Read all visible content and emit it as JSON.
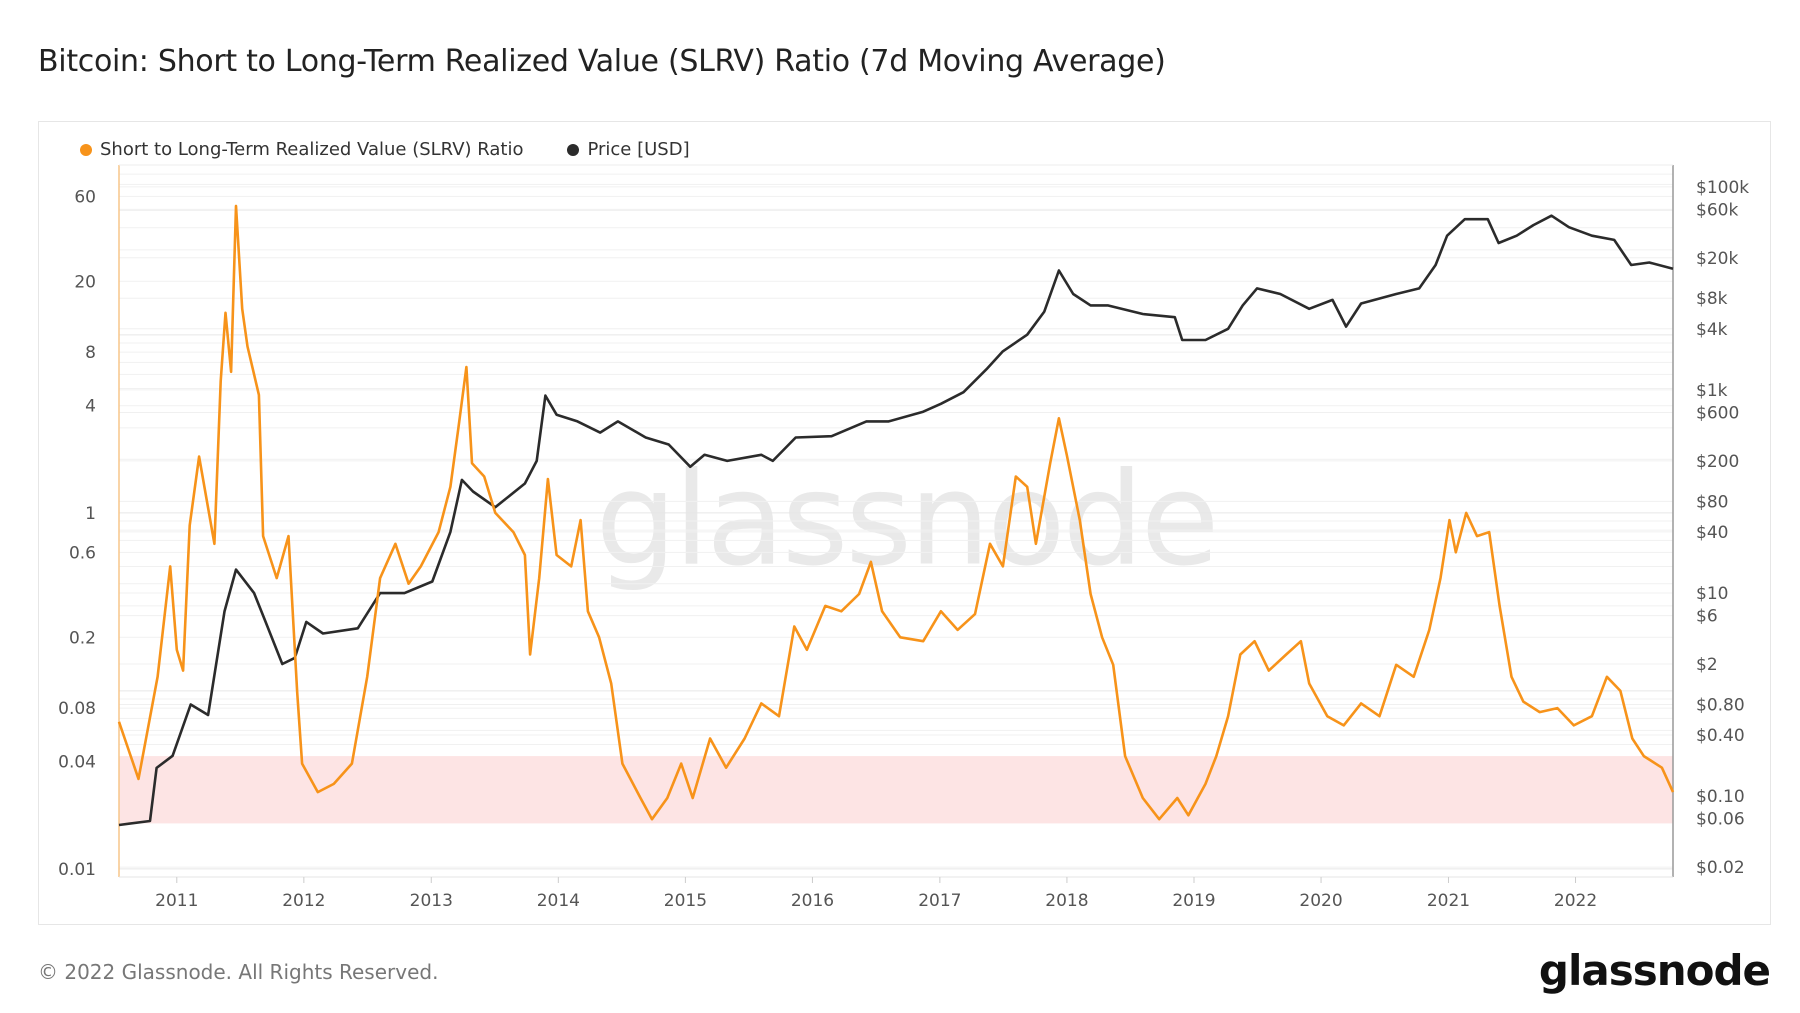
{
  "title": "Bitcoin: Short to Long-Term Realized Value (SLRV) Ratio (7d Moving Average)",
  "footer": "© 2022 Glassnode. All Rights Reserved.",
  "logo": "glassnode",
  "watermark": "glassnode",
  "chart_data": {
    "type": "line",
    "title": "Bitcoin: Short to Long-Term Realized Value (SLRV) Ratio (7d Moving Average)",
    "legend_placement": "top-left",
    "grid": true,
    "xlim": [
      "2010-07-19",
      "2022-10-08"
    ],
    "x_ticks": [
      "2011",
      "2012",
      "2013",
      "2014",
      "2015",
      "2016",
      "2017",
      "2018",
      "2019",
      "2020",
      "2021",
      "2022"
    ],
    "y_left": {
      "scale": "log",
      "ylim": [
        0.009,
        90
      ],
      "ticks": [
        60,
        20,
        8,
        4,
        1,
        0.6,
        0.2,
        0.08,
        0.04,
        0.01
      ],
      "tick_labels": [
        "60",
        "20",
        "8",
        "4",
        "1",
        "0.6",
        "0.2",
        "0.08",
        "0.04",
        "0.01"
      ]
    },
    "y_right": {
      "scale": "log",
      "ylim": [
        0.016,
        164000
      ],
      "ticks": [
        100000,
        60000,
        20000,
        8000,
        4000,
        1000,
        600,
        200,
        80,
        40,
        10,
        6,
        2,
        0.8,
        0.4,
        0.1,
        0.06,
        0.02
      ],
      "tick_labels": [
        "$100k",
        "$60k",
        "$20k",
        "$8k",
        "$4k",
        "$1k",
        "$600",
        "$200",
        "$80",
        "$40",
        "$10",
        "$6",
        "$2",
        "$0.80",
        "$0.40",
        "$0.10",
        "$0.06",
        "$0.02"
      ]
    },
    "band": {
      "axis": "left",
      "range": [
        0.018,
        0.043
      ],
      "color": "#fde4e4"
    },
    "series": [
      {
        "name": "Short to Long-Term Realized Value (SLRV) Ratio",
        "axis": "left",
        "color": "#f7931a",
        "points": [
          [
            "2010-07-19",
            0.067
          ],
          [
            "2010-09-13",
            0.032
          ],
          [
            "2010-11-07",
            0.12
          ],
          [
            "2010-12-13",
            0.5
          ],
          [
            "2011-01-01",
            0.17
          ],
          [
            "2011-01-19",
            0.13
          ],
          [
            "2011-02-07",
            0.85
          ],
          [
            "2011-03-06",
            2.07
          ],
          [
            "2011-04-19",
            0.67
          ],
          [
            "2011-05-07",
            5.5
          ],
          [
            "2011-05-21",
            13.3
          ],
          [
            "2011-06-06",
            6.2
          ],
          [
            "2011-06-20",
            53
          ],
          [
            "2011-07-08",
            14
          ],
          [
            "2011-07-23",
            8.6
          ],
          [
            "2011-08-25",
            4.6
          ],
          [
            "2011-09-06",
            0.74
          ],
          [
            "2011-10-15",
            0.43
          ],
          [
            "2011-11-18",
            0.74
          ],
          [
            "2011-12-13",
            0.098
          ],
          [
            "2011-12-27",
            0.039
          ],
          [
            "2012-02-10",
            0.027
          ],
          [
            "2012-03-27",
            0.03
          ],
          [
            "2012-05-18",
            0.039
          ],
          [
            "2012-07-01",
            0.12
          ],
          [
            "2012-08-07",
            0.43
          ],
          [
            "2012-09-20",
            0.67
          ],
          [
            "2012-10-28",
            0.4
          ],
          [
            "2012-12-02",
            0.5
          ],
          [
            "2013-01-22",
            0.78
          ],
          [
            "2013-02-25",
            1.4
          ],
          [
            "2013-03-20",
            3.0
          ],
          [
            "2013-04-12",
            6.6
          ],
          [
            "2013-04-28",
            1.9
          ],
          [
            "2013-06-02",
            1.6
          ],
          [
            "2013-07-04",
            1.0
          ],
          [
            "2013-08-25",
            0.78
          ],
          [
            "2013-09-27",
            0.58
          ],
          [
            "2013-10-12",
            0.16
          ],
          [
            "2013-11-07",
            0.43
          ],
          [
            "2013-12-02",
            1.55
          ],
          [
            "2013-12-27",
            0.58
          ],
          [
            "2014-02-07",
            0.5
          ],
          [
            "2014-03-06",
            0.91
          ],
          [
            "2014-03-27",
            0.28
          ],
          [
            "2014-04-28",
            0.2
          ],
          [
            "2014-06-02",
            0.11
          ],
          [
            "2014-07-04",
            0.039
          ],
          [
            "2014-08-25",
            0.025
          ],
          [
            "2014-09-27",
            0.019
          ],
          [
            "2014-11-10",
            0.025
          ],
          [
            "2014-12-20",
            0.039
          ],
          [
            "2015-01-22",
            0.025
          ],
          [
            "2015-03-13",
            0.054
          ],
          [
            "2015-04-28",
            0.037
          ],
          [
            "2015-06-20",
            0.054
          ],
          [
            "2015-08-07",
            0.085
          ],
          [
            "2015-09-27",
            0.072
          ],
          [
            "2015-11-10",
            0.23
          ],
          [
            "2015-12-16",
            0.17
          ],
          [
            "2016-02-07",
            0.3
          ],
          [
            "2016-03-24",
            0.28
          ],
          [
            "2016-05-14",
            0.35
          ],
          [
            "2016-06-17",
            0.53
          ],
          [
            "2016-07-19",
            0.28
          ],
          [
            "2016-09-09",
            0.2
          ],
          [
            "2016-11-14",
            0.19
          ],
          [
            "2017-01-04",
            0.28
          ],
          [
            "2017-02-21",
            0.22
          ],
          [
            "2017-04-12",
            0.27
          ],
          [
            "2017-05-25",
            0.67
          ],
          [
            "2017-07-01",
            0.5
          ],
          [
            "2017-08-07",
            1.6
          ],
          [
            "2017-09-09",
            1.4
          ],
          [
            "2017-10-04",
            0.67
          ],
          [
            "2017-11-14",
            1.9
          ],
          [
            "2017-12-09",
            3.4
          ],
          [
            "2018-01-01",
            2.1
          ],
          [
            "2018-02-07",
            0.91
          ],
          [
            "2018-03-10",
            0.35
          ],
          [
            "2018-04-12",
            0.2
          ],
          [
            "2018-05-14",
            0.14
          ],
          [
            "2018-06-17",
            0.043
          ],
          [
            "2018-08-07",
            0.025
          ],
          [
            "2018-09-23",
            0.019
          ],
          [
            "2018-11-14",
            0.025
          ],
          [
            "2018-12-16",
            0.02
          ],
          [
            "2019-02-03",
            0.03
          ],
          [
            "2019-03-06",
            0.043
          ],
          [
            "2019-04-09",
            0.072
          ],
          [
            "2019-05-14",
            0.16
          ],
          [
            "2019-06-24",
            0.19
          ],
          [
            "2019-08-04",
            0.13
          ],
          [
            "2019-09-23",
            0.16
          ],
          [
            "2019-11-04",
            0.19
          ],
          [
            "2019-11-28",
            0.11
          ],
          [
            "2020-01-19",
            0.072
          ],
          [
            "2020-03-06",
            0.064
          ],
          [
            "2020-04-25",
            0.085
          ],
          [
            "2020-06-17",
            0.072
          ],
          [
            "2020-08-04",
            0.14
          ],
          [
            "2020-09-23",
            0.12
          ],
          [
            "2020-11-07",
            0.22
          ],
          [
            "2020-12-09",
            0.43
          ],
          [
            "2021-01-04",
            0.91
          ],
          [
            "2021-01-22",
            0.6
          ],
          [
            "2021-02-21",
            1.0
          ],
          [
            "2021-03-24",
            0.74
          ],
          [
            "2021-04-28",
            0.78
          ],
          [
            "2021-05-28",
            0.3
          ],
          [
            "2021-07-01",
            0.12
          ],
          [
            "2021-08-04",
            0.087
          ],
          [
            "2021-09-20",
            0.076
          ],
          [
            "2021-11-10",
            0.08
          ],
          [
            "2021-12-27",
            0.064
          ],
          [
            "2022-02-17",
            0.072
          ],
          [
            "2022-04-01",
            0.12
          ],
          [
            "2022-05-10",
            0.1
          ],
          [
            "2022-06-13",
            0.054
          ],
          [
            "2022-07-16",
            0.043
          ],
          [
            "2022-09-06",
            0.037
          ],
          [
            "2022-10-08",
            0.027
          ]
        ]
      },
      {
        "name": "Price [USD]",
        "axis": "right",
        "color": "#2b2b2b",
        "points": [
          [
            "2010-07-19",
            0.052
          ],
          [
            "2010-10-16",
            0.057
          ],
          [
            "2010-11-04",
            0.19
          ],
          [
            "2010-12-20",
            0.25
          ],
          [
            "2011-02-10",
            0.8
          ],
          [
            "2011-04-01",
            0.63
          ],
          [
            "2011-05-18",
            6.6
          ],
          [
            "2011-06-20",
            17
          ],
          [
            "2011-08-11",
            10
          ],
          [
            "2011-09-13",
            5.2
          ],
          [
            "2011-10-31",
            2.0
          ],
          [
            "2011-12-06",
            2.3
          ],
          [
            "2012-01-08",
            5.2
          ],
          [
            "2012-02-25",
            4
          ],
          [
            "2012-06-04",
            4.5
          ],
          [
            "2012-08-07",
            10
          ],
          [
            "2012-10-16",
            10
          ],
          [
            "2013-01-04",
            13
          ],
          [
            "2013-02-25",
            40
          ],
          [
            "2013-03-30",
            130
          ],
          [
            "2013-05-01",
            100
          ],
          [
            "2013-07-04",
            70
          ],
          [
            "2013-09-27",
            120
          ],
          [
            "2013-10-31",
            200
          ],
          [
            "2013-11-25",
            880
          ],
          [
            "2013-12-27",
            570
          ],
          [
            "2014-02-25",
            490
          ],
          [
            "2014-05-01",
            380
          ],
          [
            "2014-06-21",
            490
          ],
          [
            "2014-09-09",
            340
          ],
          [
            "2014-11-14",
            290
          ],
          [
            "2015-01-15",
            175
          ],
          [
            "2015-02-25",
            230
          ],
          [
            "2015-05-01",
            200
          ],
          [
            "2015-08-07",
            230
          ],
          [
            "2015-09-09",
            200
          ],
          [
            "2015-11-14",
            340
          ],
          [
            "2016-02-25",
            350
          ],
          [
            "2016-06-04",
            490
          ],
          [
            "2016-08-07",
            490
          ],
          [
            "2016-11-14",
            610
          ],
          [
            "2017-01-04",
            730
          ],
          [
            "2017-03-10",
            950
          ],
          [
            "2017-05-15",
            1600
          ],
          [
            "2017-07-01",
            2400
          ],
          [
            "2017-09-09",
            3500
          ],
          [
            "2017-10-28",
            5900
          ],
          [
            "2017-12-09",
            15000
          ],
          [
            "2018-01-19",
            8800
          ],
          [
            "2018-03-10",
            6800
          ],
          [
            "2018-04-28",
            6800
          ],
          [
            "2018-08-07",
            5600
          ],
          [
            "2018-11-07",
            5200
          ],
          [
            "2018-11-28",
            3100
          ],
          [
            "2019-02-03",
            3100
          ],
          [
            "2019-04-09",
            4000
          ],
          [
            "2019-05-21",
            6800
          ],
          [
            "2019-07-01",
            10000
          ],
          [
            "2019-09-06",
            8800
          ],
          [
            "2019-11-28",
            6300
          ],
          [
            "2020-02-03",
            7700
          ],
          [
            "2020-03-13",
            4200
          ],
          [
            "2020-04-25",
            7100
          ],
          [
            "2020-08-04",
            8800
          ],
          [
            "2020-10-09",
            10000
          ],
          [
            "2020-11-25",
            17000
          ],
          [
            "2020-12-28",
            33000
          ],
          [
            "2021-02-17",
            48000
          ],
          [
            "2021-04-24",
            48000
          ],
          [
            "2021-05-25",
            28000
          ],
          [
            "2021-07-16",
            33000
          ],
          [
            "2021-09-02",
            42000
          ],
          [
            "2021-10-24",
            52000
          ],
          [
            "2021-12-13",
            40000
          ],
          [
            "2022-02-17",
            33000
          ],
          [
            "2022-04-22",
            30000
          ],
          [
            "2022-06-10",
            17000
          ],
          [
            "2022-08-01",
            18000
          ],
          [
            "2022-10-08",
            15600
          ]
        ]
      }
    ]
  }
}
